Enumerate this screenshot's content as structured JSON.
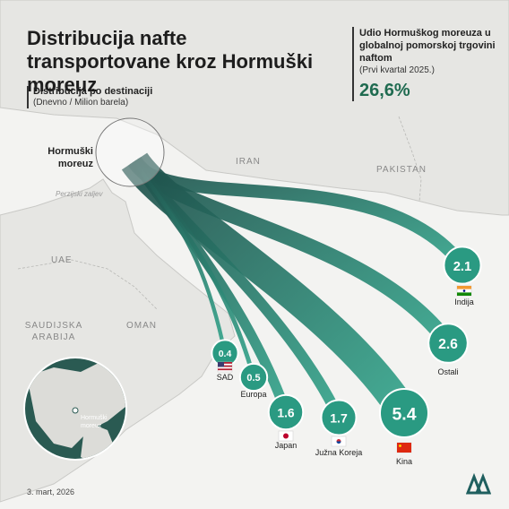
{
  "title": "Distribucija nafte transportovane kroz Hormuški moreuz",
  "subtitle": "Distribucija po destinaciji",
  "unit_note": "(Dnevno / Milion barela)",
  "share": {
    "heading": "Udio Hormuškog moreuza u globalnoj pomorskoj trgovini naftom",
    "period": "(Prvi kvartal 2025.)",
    "value": "26,6%"
  },
  "map_labels": {
    "strait": "Hormuški moreuz",
    "iran": "IRAN",
    "pakistan": "PAKISTAN",
    "gulf": "Perzijski zaljev",
    "uae": "UAE",
    "saudi": "SAUDIJSKA ARABIJA",
    "oman": "OMAN",
    "globe_label": "Hormuški moreuz"
  },
  "destinations": [
    {
      "name": "Indija",
      "value": 2.1,
      "label": "2.1",
      "flag": "india-flag"
    },
    {
      "name": "Ostali",
      "value": 2.6,
      "label": "2.6",
      "flag": "none"
    },
    {
      "name": "Kina",
      "value": 5.4,
      "label": "5.4",
      "flag": "china-flag"
    },
    {
      "name": "Južna Koreja",
      "value": 1.7,
      "label": "1.7",
      "flag": "korea-flag"
    },
    {
      "name": "Japan",
      "value": 1.6,
      "label": "1.6",
      "flag": "japan-flag"
    },
    {
      "name": "Europa",
      "value": 0.5,
      "label": "0.5",
      "flag": "none"
    },
    {
      "name": "SAD",
      "value": 0.4,
      "label": "0.4",
      "flag": "usa-flag"
    }
  ],
  "date": "3. mart, 2026",
  "colors": {
    "flow": "#2a9a82",
    "flow_dark": "#1f6b50",
    "accent": "#1f6b50"
  }
}
